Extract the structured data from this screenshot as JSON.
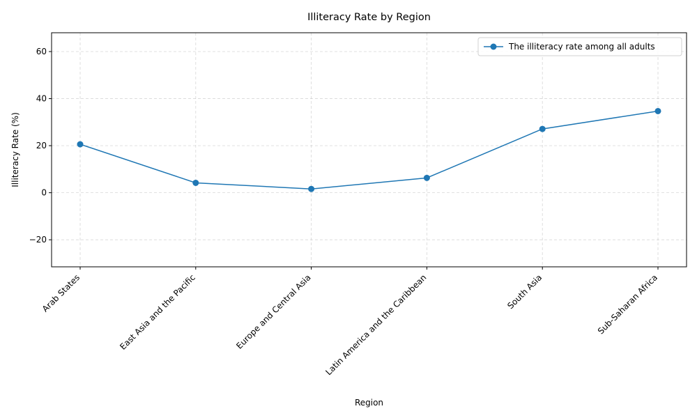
{
  "chart_data": {
    "type": "line",
    "title": "Illiteracy Rate by Region",
    "xlabel": "Region",
    "ylabel": "Illiteracy Rate (%)",
    "categories": [
      "Arab States",
      "East Asia and the Pacific",
      "Europe and Central Asia",
      "Latin America and the Caribbean",
      "South Asia",
      "Sub-Saharan Africa"
    ],
    "series": [
      {
        "name": "The illiteracy rate among all adults",
        "values": [
          20.6,
          4.2,
          1.6,
          6.3,
          27.1,
          34.7
        ],
        "color": "#1f77b4"
      }
    ],
    "ylim": [
      -31.5,
      68
    ],
    "yticks": [
      -20,
      0,
      20,
      40,
      60
    ],
    "grid": true,
    "legend_position": "upper right"
  }
}
